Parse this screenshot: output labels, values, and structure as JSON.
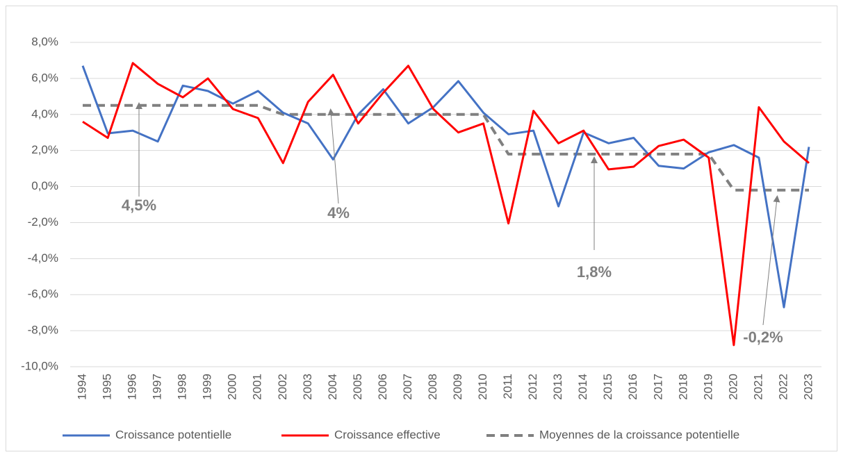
{
  "chart_data": {
    "type": "line",
    "categories": [
      "1994",
      "1995",
      "1996",
      "1997",
      "1998",
      "1999",
      "2000",
      "2001",
      "2002",
      "2003",
      "2004",
      "2005",
      "2006",
      "2007",
      "2008",
      "2009",
      "2010",
      "2011",
      "2012",
      "2013",
      "2014",
      "2015",
      "2016",
      "2017",
      "2018",
      "2019",
      "2020",
      "2021",
      "2022",
      "2023"
    ],
    "series": [
      {
        "name": "Croissance potentielle",
        "color": "#4472c4",
        "style": "solid",
        "values": [
          6.7,
          2.95,
          3.1,
          2.5,
          5.6,
          5.3,
          4.6,
          5.3,
          4.1,
          3.5,
          1.5,
          4.0,
          5.4,
          3.5,
          4.4,
          5.85,
          4.1,
          2.9,
          3.1,
          -1.1,
          3.0,
          2.4,
          2.7,
          1.15,
          1.0,
          1.9,
          2.3,
          1.6,
          -6.7,
          2.2
        ]
      },
      {
        "name": "Croissance effective",
        "color": "#ff0000",
        "style": "solid",
        "values": [
          3.6,
          2.7,
          6.85,
          5.7,
          4.95,
          6.0,
          4.3,
          3.8,
          1.3,
          4.7,
          6.2,
          3.5,
          5.2,
          6.7,
          4.3,
          3.0,
          3.5,
          -2.05,
          4.2,
          2.4,
          3.1,
          0.95,
          1.1,
          2.25,
          2.6,
          1.6,
          -8.8,
          4.4,
          2.5,
          1.3
        ]
      },
      {
        "name": "Moyennes de la croissance potentielle",
        "color": "#808080",
        "style": "dashed",
        "values": [
          4.5,
          4.5,
          4.5,
          4.5,
          4.5,
          4.5,
          4.5,
          4.5,
          4.0,
          4.0,
          4.0,
          4.0,
          4.0,
          4.0,
          4.0,
          4.0,
          4.0,
          1.8,
          1.8,
          1.8,
          1.8,
          1.8,
          1.8,
          1.8,
          1.8,
          1.8,
          -0.2,
          -0.2,
          -0.2,
          -0.2
        ]
      }
    ],
    "ylim": [
      -10,
      8
    ],
    "yticks": [
      {
        "value": -10,
        "label": "-10,0%"
      },
      {
        "value": -8,
        "label": "-8,0%"
      },
      {
        "value": -6,
        "label": "-6,0%"
      },
      {
        "value": -4,
        "label": "-4,0%"
      },
      {
        "value": -2,
        "label": "-2,0%"
      },
      {
        "value": 0,
        "label": "0,0%"
      },
      {
        "value": 2,
        "label": "2,0%"
      },
      {
        "value": 4,
        "label": "4,0%"
      },
      {
        "value": 6,
        "label": "6,0%"
      },
      {
        "value": 8,
        "label": "8,0%"
      }
    ],
    "grid": true,
    "legend": "bottom",
    "annotations": [
      "4,5%",
      "4%",
      "1,8%",
      "-0,2%"
    ]
  }
}
